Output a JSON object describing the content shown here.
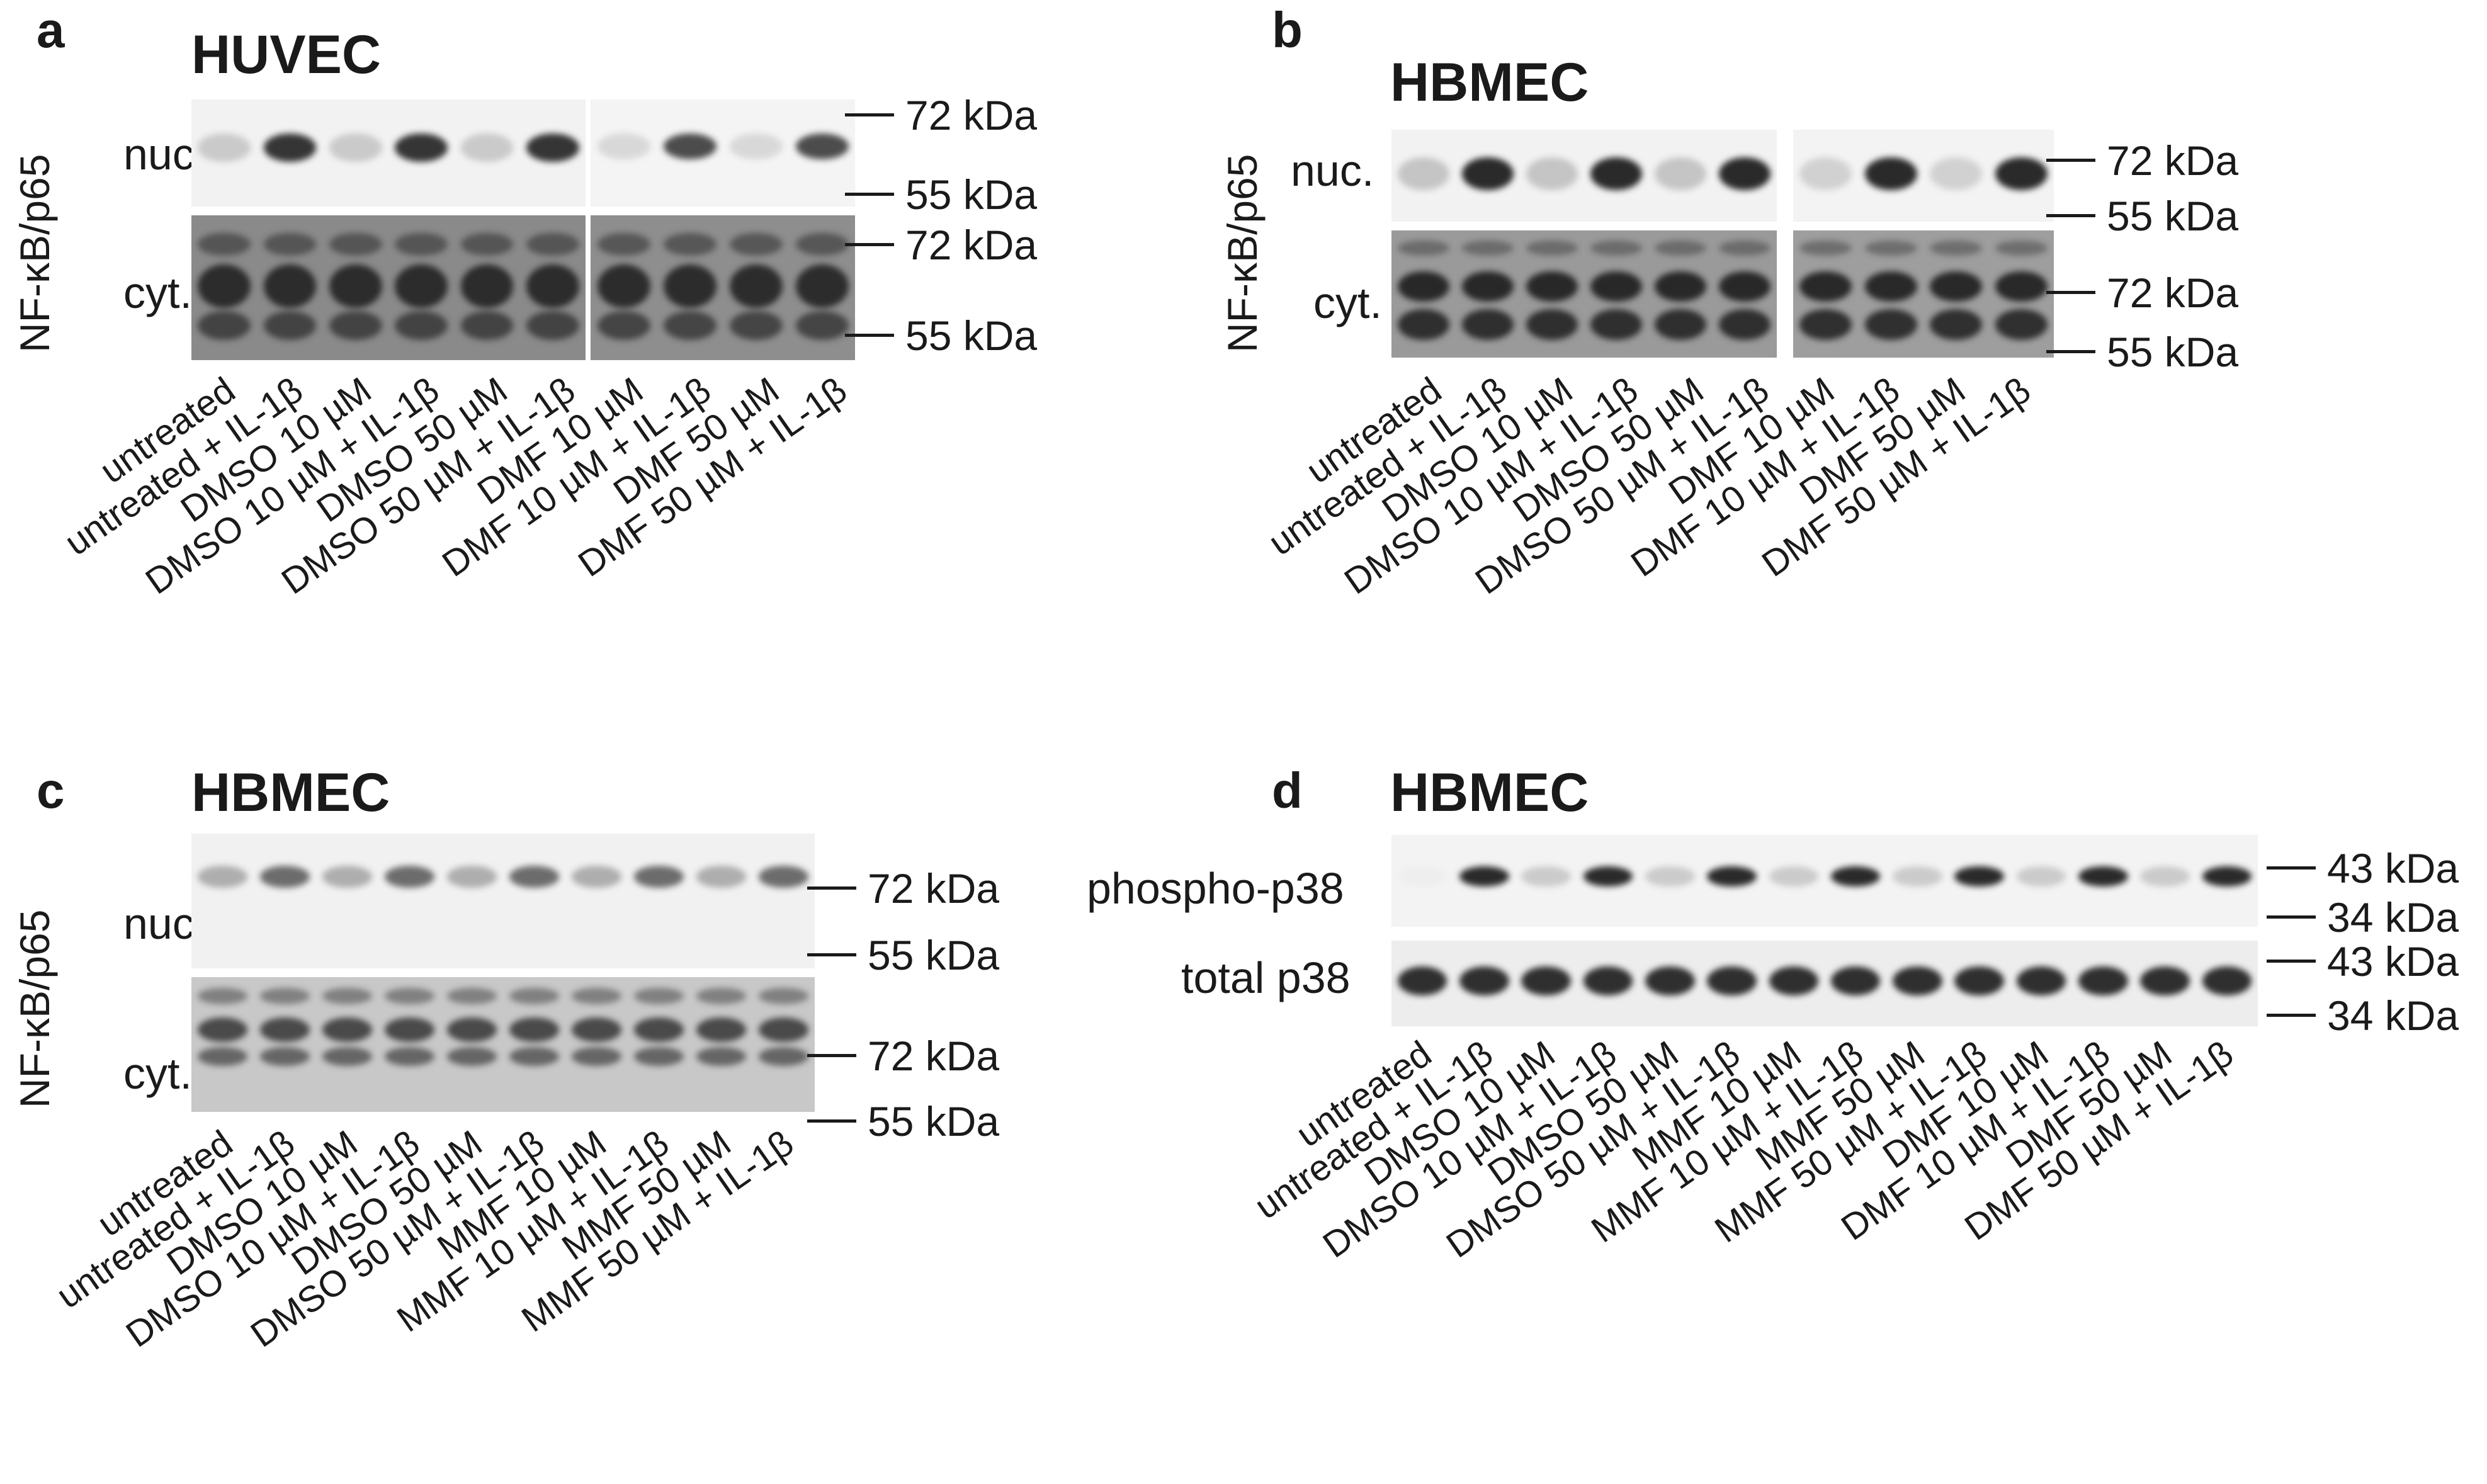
{
  "panels": {
    "a": {
      "letter": "a",
      "cell_line": "HUVEC",
      "y_label": "NF-κB/p65",
      "rows": [
        "nuc.",
        "cyt."
      ],
      "markers": [
        "72 kDa",
        "55 kDa",
        "72 kDa",
        "55 kDa"
      ],
      "lanes": [
        "untreated",
        "untreated + IL-1β",
        "DMSO 10 µM",
        "DMSO 10 µM + IL-1β",
        "DMSO 50 µM",
        "DMSO 50 µM + IL-1β",
        "DMF 10 µM",
        "DMF 10 µM + IL-1β",
        "DMF 50 µM",
        "DMF 50 µM + IL-1β"
      ]
    },
    "b": {
      "letter": "b",
      "cell_line": "HBMEC",
      "y_label": "NF-κB/p65",
      "rows": [
        "nuc.",
        "cyt."
      ],
      "markers": [
        "72 kDa",
        "55 kDa",
        "72 kDa",
        "55 kDa"
      ],
      "lanes": [
        "untreated",
        "untreated + IL-1β",
        "DMSO 10 µM",
        "DMSO 10 µM + IL-1β",
        "DMSO 50 µM",
        "DMSO 50 µM + IL-1β",
        "DMF 10 µM",
        "DMF 10 µM + IL-1β",
        "DMF 50 µM",
        "DMF 50 µM + IL-1β"
      ]
    },
    "c": {
      "letter": "c",
      "cell_line": "HBMEC",
      "y_label": "NF-κB/p65",
      "rows": [
        "nuc.",
        "cyt."
      ],
      "markers": [
        "72 kDa",
        "55 kDa",
        "72 kDa",
        "55 kDa"
      ],
      "lanes": [
        "untreated",
        "untreated + IL-1β",
        "DMSO 10 µM",
        "DMSO 10 µM + IL-1β",
        "DMSO 50 µM",
        "DMSO 50 µM + IL-1β",
        "MMF 10 µM",
        "MMF 10 µM + IL-1β",
        "MMF 50 µM",
        "MMF 50 µM + IL-1β"
      ]
    },
    "d": {
      "letter": "d",
      "cell_line": "HBMEC",
      "rows": [
        "phospho-p38",
        "total p38"
      ],
      "markers": [
        "43 kDa",
        "34 kDa",
        "43 kDa",
        "34 kDa"
      ],
      "lanes": [
        "untreated",
        "untreated + IL-1β",
        "DMSO 10 µM",
        "DMSO 10 µM + IL-1β",
        "DMSO 50 µM",
        "DMSO 50 µM + IL-1β",
        "MMF 10 µM",
        "MMF 10 µM + IL-1β",
        "MMF 50 µM",
        "MMF 50 µM + IL-1β",
        "DMF 10 µM",
        "DMF 10 µM + IL-1β",
        "DMF 50 µM",
        "DMF 50 µM + IL-1β"
      ]
    }
  }
}
